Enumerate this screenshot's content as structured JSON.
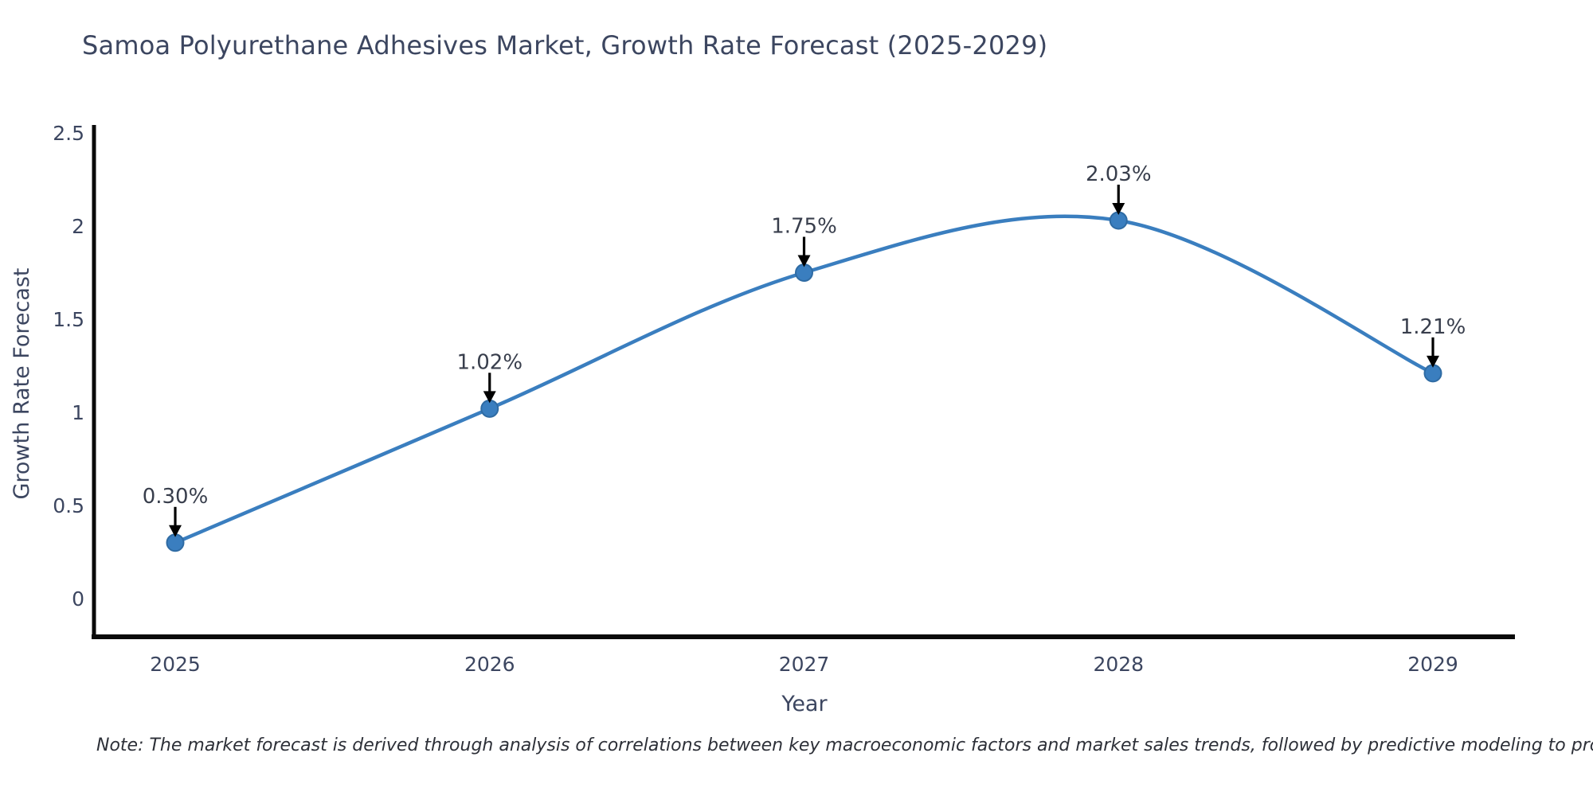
{
  "header": {
    "title": "Samoa Polyurethane Adhesives Market, Growth Rate Forecast (2025-2029)"
  },
  "footnote": {
    "text": "Note: The market forecast is derived through analysis of correlations between key macroeconomic factors and market sales trends, followed by predictive modeling to project future sales"
  },
  "chart_data": {
    "type": "line",
    "title": "Samoa Polyurethane Adhesives Market, Growth Rate Forecast (2025-2029)",
    "categories": [
      "2025",
      "2026",
      "2027",
      "2028",
      "2029"
    ],
    "values": [
      0.3,
      1.02,
      1.75,
      2.03,
      1.21
    ],
    "point_labels": [
      "0.30%",
      "1.02%",
      "1.75%",
      "2.03%",
      "1.21%"
    ],
    "xlabel": "Year",
    "ylabel": "Growth Rate Forecast",
    "ylim": [
      0,
      2.5
    ],
    "ytick_values": [
      0,
      0.5,
      1,
      1.5,
      2,
      2.5
    ],
    "ytick_labels": [
      "0",
      "0.5",
      "1",
      "1.5",
      "2",
      "2.5"
    ],
    "grid": false,
    "legend_position": "none",
    "marker_style": "circle",
    "annotation_arrows": true,
    "colors": {
      "line": "#3a7ebf",
      "marker": "#3a7ebf",
      "marker_edge": "#2f6ba3",
      "axis": "#0a0a0a",
      "tick_text": "#3c4660",
      "axis_title_text": "#3c4660",
      "annotation_text": "#383e4c",
      "arrow": "#000000",
      "title_text": "#3c4660",
      "note_text": "#2d3038",
      "background": "#ffffff"
    }
  }
}
